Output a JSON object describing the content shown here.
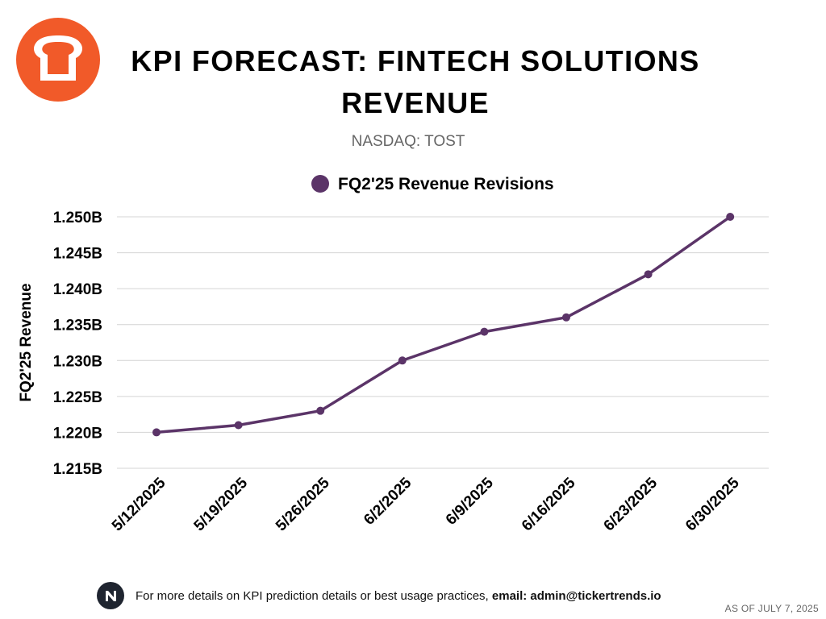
{
  "header": {
    "title": "KPI FORECAST: FINTECH SOLUTIONS REVENUE",
    "subtitle": "NASDAQ: TOST"
  },
  "logo": {
    "icon": "toast-bread-icon",
    "color": "#f15a29"
  },
  "colors": {
    "line": "#5b3468",
    "grid": "#d4d4d4"
  },
  "chart_data": {
    "type": "line",
    "title": "",
    "ylabel": "FQ2'25 Revenue",
    "xlabel": "",
    "categories": [
      "5/12/2025",
      "5/19/2025",
      "5/26/2025",
      "6/2/2025",
      "6/9/2025",
      "6/16/2025",
      "6/23/2025",
      "6/30/2025"
    ],
    "series": [
      {
        "name": "FQ2'25 Revenue Revisions",
        "values": [
          1.22,
          1.221,
          1.223,
          1.23,
          1.234,
          1.236,
          1.242,
          1.25
        ]
      }
    ],
    "ylim": [
      1.215,
      1.25
    ],
    "y_ticks": [
      1.25,
      1.245,
      1.24,
      1.235,
      1.23,
      1.225,
      1.22,
      1.215
    ],
    "y_tick_labels": [
      "1.250B",
      "1.245B",
      "1.240B",
      "1.235B",
      "1.230B",
      "1.225B",
      "1.220B",
      "1.215B"
    ],
    "grid": true,
    "legend_position": "top-center"
  },
  "footer": {
    "icon": "tickertrends-logo-icon",
    "text": "For more details on KPI prediction details or best usage practices,",
    "email": "email: admin@tickertrends.io",
    "as_of": "AS OF JULY 7, 2025"
  }
}
